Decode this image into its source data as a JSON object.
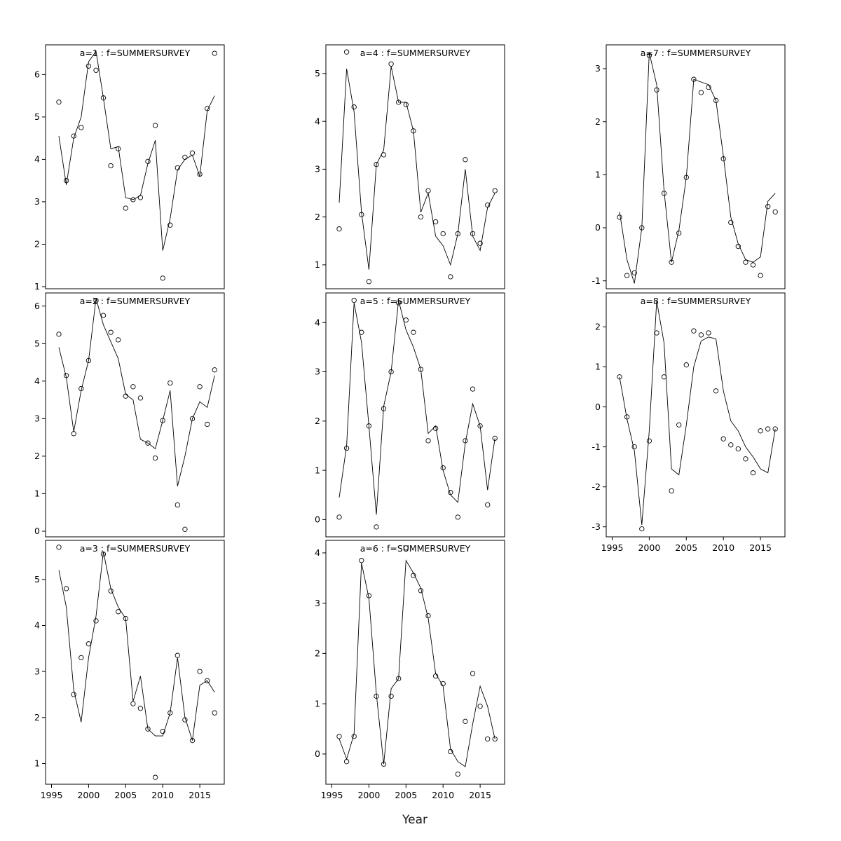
{
  "figure": {
    "xlabel": "Year",
    "title_color": "#7d7d7d",
    "line_color": "#000000",
    "point_color": "#000000"
  },
  "chart_data": [
    {
      "type": "line",
      "title": "a=1  :  f=SUMMERSURVEY",
      "show_xaxis": false,
      "xlim": [
        1994.2,
        2018.3
      ],
      "ylim": [
        0.95,
        6.7
      ],
      "yticks": [
        1,
        2,
        3,
        4,
        5,
        6
      ],
      "xticks": [
        1995,
        2000,
        2005,
        2010,
        2015
      ],
      "x": [
        1996,
        1997,
        1998,
        1999,
        2000,
        2001,
        2002,
        2003,
        2004,
        2005,
        2006,
        2007,
        2008,
        2009,
        2010,
        2011,
        2012,
        2013,
        2014,
        2015,
        2016,
        2017
      ],
      "points": [
        5.35,
        3.5,
        4.55,
        4.75,
        6.2,
        6.1,
        5.45,
        3.85,
        4.25,
        2.85,
        3.05,
        3.1,
        3.95,
        4.8,
        1.2,
        2.45,
        3.8,
        4.05,
        4.15,
        3.65,
        5.2,
        6.5
      ],
      "line": [
        4.55,
        3.4,
        4.5,
        5.0,
        6.3,
        6.55,
        5.45,
        4.25,
        4.3,
        3.1,
        3.05,
        3.15,
        3.9,
        4.45,
        1.85,
        2.6,
        3.75,
        4.0,
        4.1,
        3.6,
        5.15,
        5.5
      ]
    },
    {
      "type": "line",
      "title": "a=2  :  f=SUMMERSURVEY",
      "show_xaxis": false,
      "xlim": [
        1994.2,
        2018.3
      ],
      "ylim": [
        -0.15,
        6.35
      ],
      "yticks": [
        0,
        1,
        2,
        3,
        4,
        5,
        6
      ],
      "xticks": [
        1995,
        2000,
        2005,
        2010,
        2015
      ],
      "x": [
        1996,
        1997,
        1998,
        1999,
        2000,
        2001,
        2002,
        2003,
        2004,
        2005,
        2006,
        2007,
        2008,
        2009,
        2010,
        2011,
        2012,
        2013,
        2014,
        2015,
        2016,
        2017
      ],
      "points": [
        5.25,
        4.15,
        2.6,
        3.8,
        4.55,
        6.15,
        5.75,
        5.3,
        5.1,
        3.6,
        3.85,
        3.55,
        2.35,
        1.95,
        2.95,
        3.95,
        0.7,
        0.05,
        3.0,
        3.85,
        2.85,
        4.3
      ],
      "line": [
        4.9,
        4.1,
        2.65,
        3.75,
        4.55,
        6.2,
        5.5,
        5.05,
        4.6,
        3.65,
        3.5,
        2.45,
        2.35,
        2.2,
        2.95,
        3.75,
        1.2,
        2.0,
        3.0,
        3.45,
        3.3,
        4.15
      ]
    },
    {
      "type": "line",
      "title": "a=3  :  f=SUMMERSURVEY",
      "show_xaxis": true,
      "xlim": [
        1994.2,
        2018.3
      ],
      "ylim": [
        0.55,
        5.85
      ],
      "yticks": [
        1,
        2,
        3,
        4,
        5
      ],
      "xticks": [
        1995,
        2000,
        2005,
        2010,
        2015
      ],
      "x": [
        1996,
        1997,
        1998,
        1999,
        2000,
        2001,
        2002,
        2003,
        2004,
        2005,
        2006,
        2007,
        2008,
        2009,
        2010,
        2011,
        2012,
        2013,
        2014,
        2015,
        2016,
        2017
      ],
      "points": [
        5.7,
        4.8,
        2.5,
        3.3,
        3.6,
        4.1,
        5.55,
        4.75,
        4.3,
        4.15,
        2.3,
        2.2,
        1.75,
        0.7,
        1.7,
        2.1,
        3.35,
        1.95,
        1.5,
        3.0,
        2.8,
        2.1
      ],
      "line": [
        5.2,
        4.4,
        2.6,
        1.9,
        3.3,
        4.2,
        5.6,
        4.8,
        4.4,
        4.15,
        2.35,
        2.9,
        1.75,
        1.6,
        1.6,
        2.1,
        3.3,
        2.0,
        1.5,
        2.7,
        2.8,
        2.55
      ]
    },
    {
      "type": "line",
      "title": "a=4  :  f=SUMMERSURVEY",
      "show_xaxis": false,
      "xlim": [
        1994.2,
        2018.3
      ],
      "ylim": [
        0.5,
        5.6
      ],
      "yticks": [
        1,
        2,
        3,
        4,
        5
      ],
      "xticks": [
        1995,
        2000,
        2005,
        2010,
        2015
      ],
      "x": [
        1996,
        1997,
        1998,
        1999,
        2000,
        2001,
        2002,
        2003,
        2004,
        2005,
        2006,
        2007,
        2008,
        2009,
        2010,
        2011,
        2012,
        2013,
        2014,
        2015,
        2016,
        2017
      ],
      "points": [
        1.75,
        5.45,
        4.3,
        2.05,
        0.65,
        3.1,
        3.3,
        5.2,
        4.4,
        4.35,
        3.8,
        2.0,
        2.55,
        1.9,
        1.65,
        0.75,
        1.65,
        3.2,
        1.65,
        1.45,
        2.25,
        2.55
      ],
      "line": [
        2.3,
        5.1,
        4.2,
        2.1,
        0.9,
        3.1,
        3.4,
        5.15,
        4.4,
        4.4,
        3.8,
        2.1,
        2.5,
        1.6,
        1.4,
        1.0,
        1.65,
        3.0,
        1.6,
        1.3,
        2.2,
        2.5
      ]
    },
    {
      "type": "line",
      "title": "a=5  :  f=SUMMERSURVEY",
      "show_xaxis": false,
      "xlim": [
        1994.2,
        2018.3
      ],
      "ylim": [
        -0.35,
        4.6
      ],
      "yticks": [
        0,
        1,
        2,
        3,
        4
      ],
      "xticks": [
        1995,
        2000,
        2005,
        2010,
        2015
      ],
      "x": [
        1996,
        1997,
        1998,
        1999,
        2000,
        2001,
        2002,
        2003,
        2004,
        2005,
        2006,
        2007,
        2008,
        2009,
        2010,
        2011,
        2012,
        2013,
        2014,
        2015,
        2016,
        2017
      ],
      "points": [
        0.05,
        1.45,
        4.45,
        3.8,
        1.9,
        -0.15,
        2.25,
        3.0,
        4.4,
        4.05,
        3.8,
        3.05,
        1.6,
        1.85,
        1.05,
        0.55,
        0.05,
        1.6,
        2.65,
        1.9,
        0.3,
        1.65
      ],
      "line": [
        0.45,
        1.5,
        4.4,
        3.6,
        1.9,
        0.1,
        2.3,
        3.0,
        4.45,
        3.85,
        3.5,
        3.05,
        1.75,
        1.9,
        1.0,
        0.5,
        0.35,
        1.55,
        2.35,
        1.9,
        0.6,
        1.65
      ]
    },
    {
      "type": "line",
      "title": "a=6  :  f=SUMMERSURVEY",
      "show_xaxis": true,
      "xlim": [
        1994.2,
        2018.3
      ],
      "ylim": [
        -0.6,
        4.25
      ],
      "yticks": [
        0,
        1,
        2,
        3,
        4
      ],
      "xticks": [
        1995,
        2000,
        2005,
        2010,
        2015
      ],
      "x": [
        1996,
        1997,
        1998,
        1999,
        2000,
        2001,
        2002,
        2003,
        2004,
        2005,
        2006,
        2007,
        2008,
        2009,
        2010,
        2011,
        2012,
        2013,
        2014,
        2015,
        2016,
        2017
      ],
      "points": [
        0.35,
        -0.15,
        0.35,
        3.85,
        3.15,
        1.15,
        -0.2,
        1.15,
        1.5,
        4.1,
        3.55,
        3.25,
        2.75,
        1.55,
        1.4,
        0.05,
        -0.4,
        0.65,
        1.6,
        0.95,
        0.3,
        0.3
      ],
      "line": [
        0.3,
        -0.1,
        0.4,
        3.8,
        3.1,
        1.2,
        -0.2,
        1.3,
        1.5,
        3.85,
        3.6,
        3.3,
        2.7,
        1.6,
        1.35,
        0.1,
        -0.15,
        -0.25,
        0.6,
        1.35,
        0.95,
        0.3
      ]
    },
    {
      "type": "line",
      "title": "a=7  :  f=SUMMERSURVEY",
      "show_xaxis": false,
      "xlim": [
        1994.2,
        2018.3
      ],
      "ylim": [
        -1.15,
        3.45
      ],
      "yticks": [
        -1,
        0,
        1,
        2,
        3
      ],
      "xticks": [
        1995,
        2000,
        2005,
        2010,
        2015
      ],
      "x": [
        1996,
        1997,
        1998,
        1999,
        2000,
        2001,
        2002,
        2003,
        2004,
        2005,
        2006,
        2007,
        2008,
        2009,
        2010,
        2011,
        2012,
        2013,
        2014,
        2015,
        2016,
        2017
      ],
      "points": [
        0.2,
        -0.9,
        -0.85,
        0.0,
        3.25,
        2.6,
        0.65,
        -0.65,
        -0.1,
        0.95,
        2.8,
        2.55,
        2.65,
        2.4,
        1.3,
        0.1,
        -0.35,
        -0.65,
        -0.7,
        -0.9,
        0.4,
        0.3
      ],
      "line": [
        0.3,
        -0.6,
        -1.05,
        0.0,
        3.3,
        2.7,
        0.7,
        -0.65,
        -0.05,
        0.95,
        2.8,
        2.75,
        2.7,
        2.4,
        1.35,
        0.2,
        -0.3,
        -0.6,
        -0.65,
        -0.55,
        0.5,
        0.65
      ]
    },
    {
      "type": "line",
      "title": "a=8  :  f=SUMMERSURVEY",
      "show_xaxis": true,
      "xlim": [
        1994.2,
        2018.3
      ],
      "ylim": [
        -3.25,
        2.85
      ],
      "yticks": [
        -3,
        -2,
        -1,
        0,
        1,
        2
      ],
      "xticks": [
        1995,
        2000,
        2005,
        2010,
        2015
      ],
      "x": [
        1996,
        1997,
        1998,
        1999,
        2000,
        2001,
        2002,
        2003,
        2004,
        2005,
        2006,
        2007,
        2008,
        2009,
        2010,
        2011,
        2012,
        2013,
        2014,
        2015,
        2016,
        2017
      ],
      "points": [
        0.75,
        -0.25,
        -1.0,
        -3.05,
        -0.85,
        1.85,
        0.75,
        -2.1,
        -0.45,
        1.05,
        1.9,
        1.8,
        1.85,
        0.4,
        -0.8,
        -0.95,
        -1.05,
        -1.3,
        -1.65,
        -0.6,
        -0.55,
        -0.55
      ],
      "line": [
        0.75,
        -0.3,
        -1.1,
        -2.95,
        -0.6,
        2.65,
        1.6,
        -1.55,
        -1.7,
        -0.45,
        1.0,
        1.65,
        1.75,
        1.7,
        0.4,
        -0.35,
        -0.6,
        -1.0,
        -1.25,
        -1.55,
        -1.65,
        -0.55
      ]
    }
  ]
}
